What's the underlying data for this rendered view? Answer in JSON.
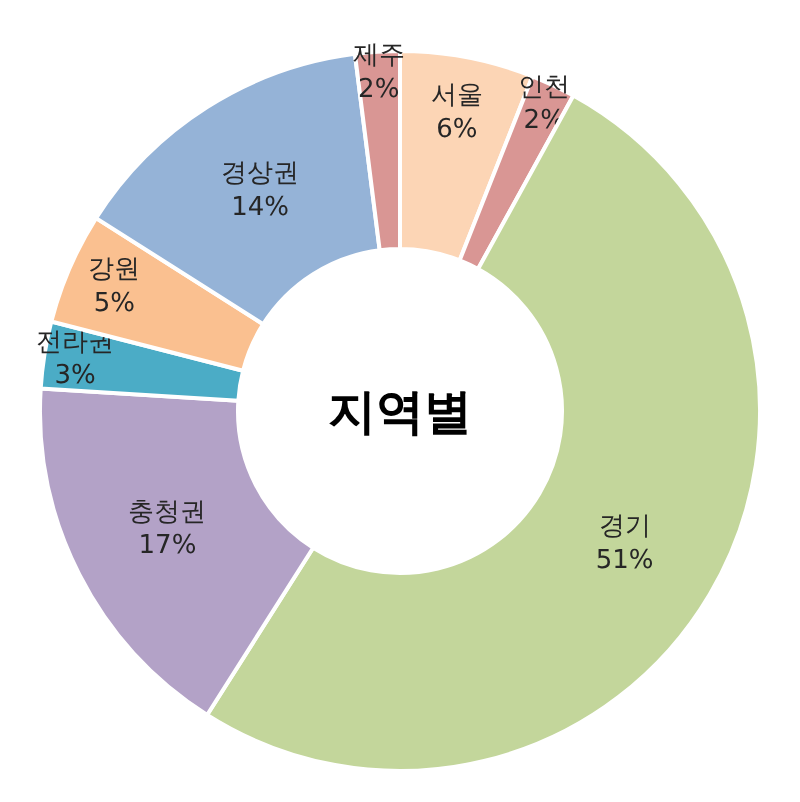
{
  "chart_data": {
    "type": "donut",
    "title": "지역별",
    "categories": [
      "서울",
      "인천",
      "경기",
      "충청권",
      "전라권",
      "강원",
      "경상권",
      "제주"
    ],
    "values": [
      6,
      2,
      51,
      17,
      3,
      5,
      14,
      2
    ],
    "value_labels": [
      "6%",
      "2%",
      "51%",
      "17%",
      "3%",
      "5%",
      "14%",
      "2%"
    ],
    "colors": [
      "#fcd5b5",
      "#d99694",
      "#c3d69b",
      "#b3a2c7",
      "#4bacc6",
      "#fac090",
      "#95b3d7",
      "#d99694"
    ],
    "legend": false
  }
}
